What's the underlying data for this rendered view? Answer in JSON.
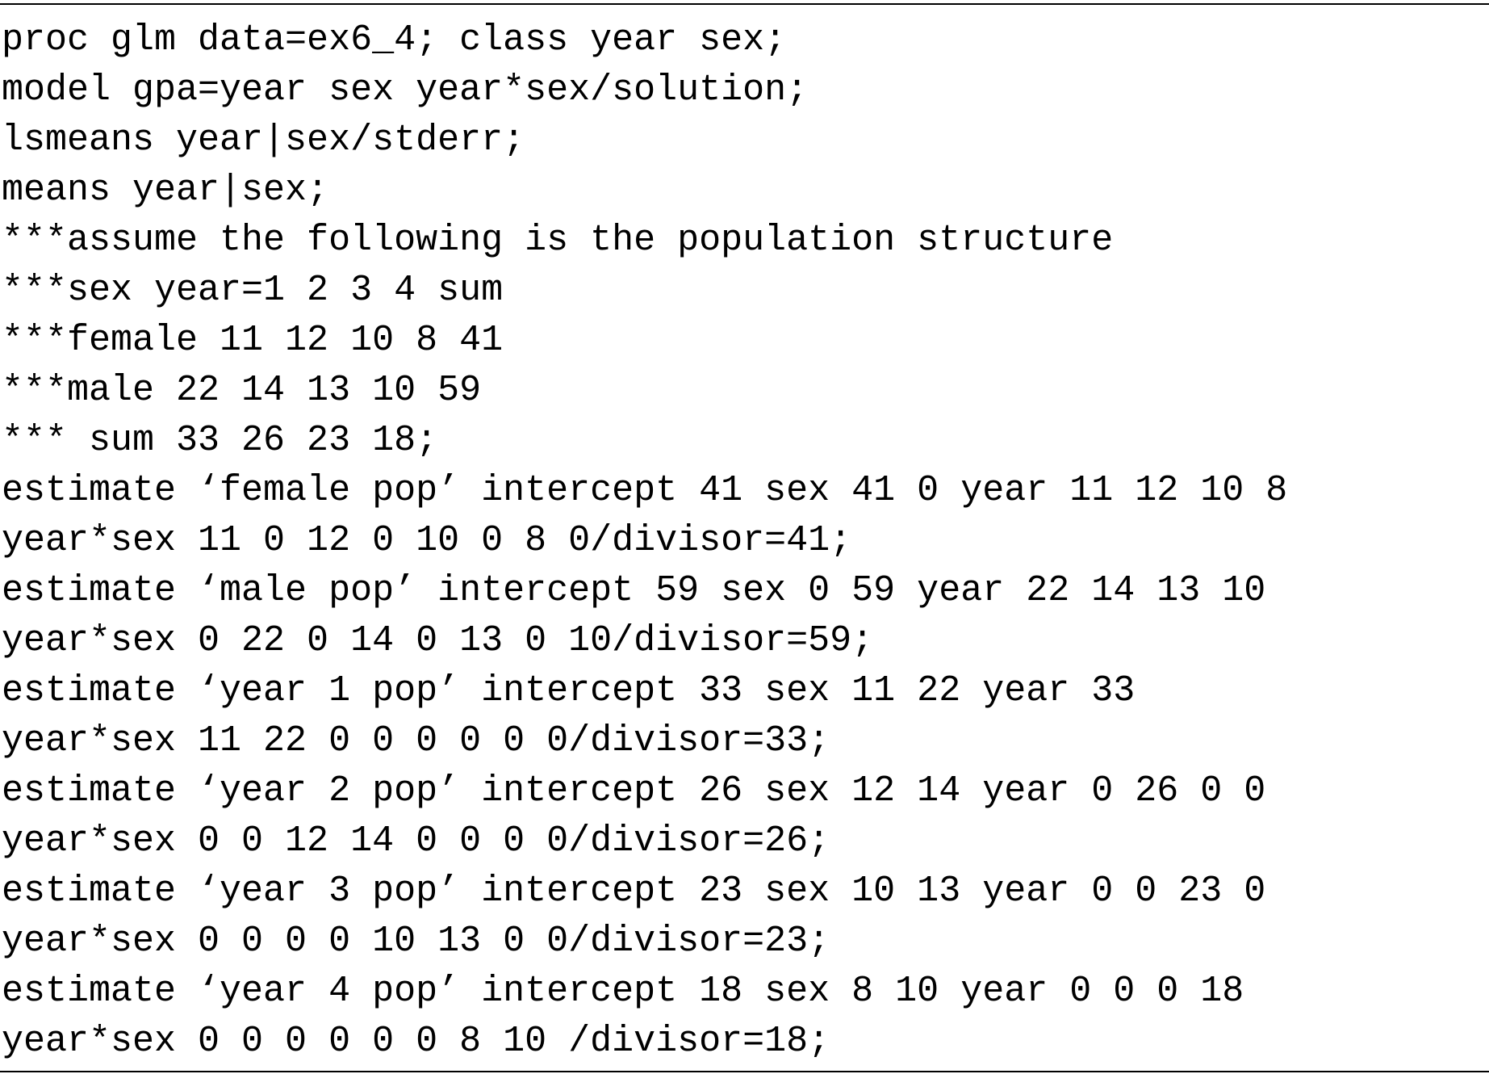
{
  "code": {
    "lines": [
      "proc glm data=ex6_4; class year sex;",
      "model gpa=year sex year*sex/solution;",
      "lsmeans year|sex/stderr;",
      "means year|sex;",
      "***assume the following is the population structure",
      "***sex year=1 2 3 4 sum",
      "***female 11 12 10 8 41",
      "***male 22 14 13 10 59",
      "*** sum 33 26 23 18;",
      "estimate ‘female pop’ intercept 41 sex 41 0 year 11 12 10 8",
      "year*sex 11 0 12 0 10 0 8 0/divisor=41;",
      "estimate ‘male pop’ intercept 59 sex 0 59 year 22 14 13 10",
      "year*sex 0 22 0 14 0 13 0 10/divisor=59;",
      "estimate ‘year 1 pop’ intercept 33 sex 11 22 year 33",
      "year*sex 11 22 0 0 0 0 0 0/divisor=33;",
      "estimate ‘year 2 pop’ intercept 26 sex 12 14 year 0 26 0 0",
      "year*sex 0 0 12 14 0 0 0 0/divisor=26;",
      "estimate ‘year 3 pop’ intercept 23 sex 10 13 year 0 0 23 0",
      "year*sex 0 0 0 0 10 13 0 0/divisor=23;",
      "estimate ‘year 4 pop’ intercept 18 sex 8 10 year 0 0 0 18",
      "year*sex 0 0 0 0 0 0 8 10 /divisor=18;"
    ]
  }
}
